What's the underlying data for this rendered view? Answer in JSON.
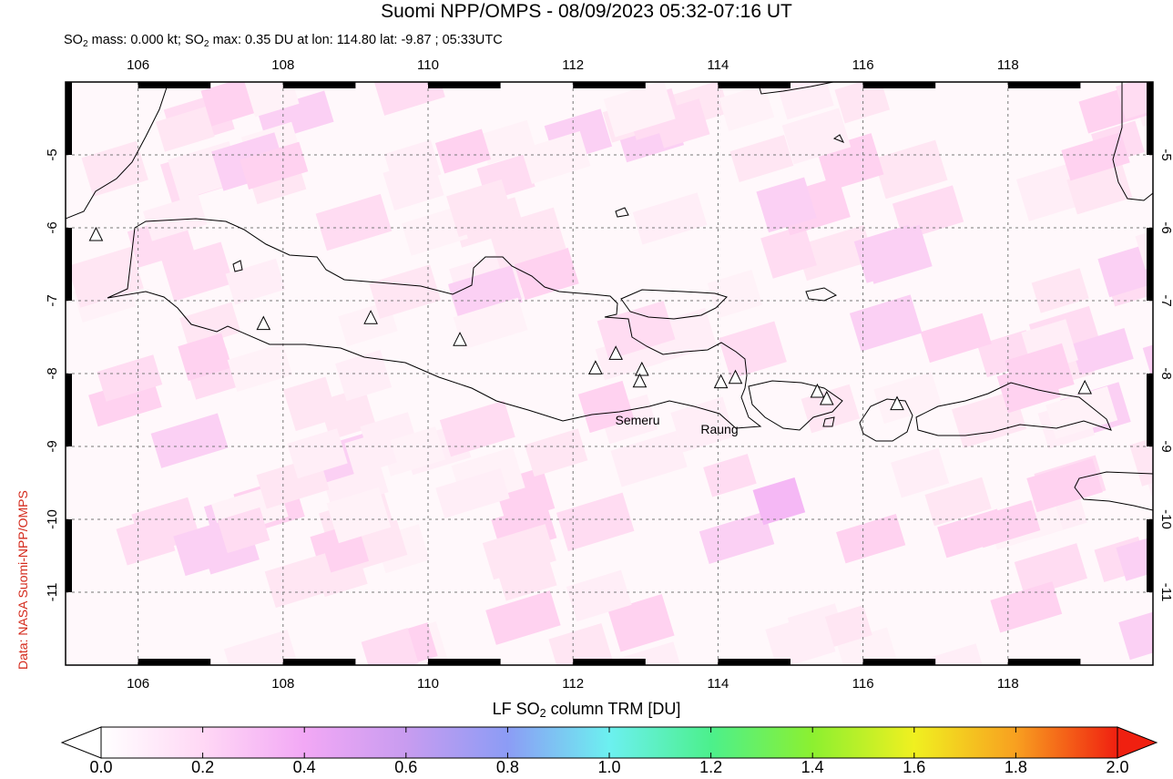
{
  "header": {
    "title": "Suomi NPP/OMPS - 08/09/2023 05:32-07:16 UT",
    "subtitle_parts": [
      "SO",
      "2",
      " mass: 0.000 kt; SO",
      "2",
      " max: 0.35 DU at lon: 114.80 lat: -9.87 ; 05:33UTC"
    ]
  },
  "credit": "Data: NASA Suomi-NPP/OMPS",
  "map": {
    "lon_range": [
      105,
      120
    ],
    "lat_range": [
      -12,
      -4
    ],
    "lon_ticks": [
      106,
      108,
      110,
      112,
      114,
      116,
      118
    ],
    "lat_ticks": [
      -5,
      -6,
      -7,
      -8,
      -9,
      -10,
      -11
    ],
    "grid": "dashed",
    "volcano_labels": [
      {
        "name": "Semeru",
        "lon": 112.92,
        "lat": -8.11
      },
      {
        "name": "Raung",
        "lon": 114.04,
        "lat": -8.12
      }
    ],
    "volcanoes": [
      {
        "lon": 105.42,
        "lat": -6.1
      },
      {
        "lon": 107.73,
        "lat": -7.32
      },
      {
        "lon": 109.21,
        "lat": -7.24
      },
      {
        "lon": 110.44,
        "lat": -7.54
      },
      {
        "lon": 112.31,
        "lat": -7.93
      },
      {
        "lon": 112.59,
        "lat": -7.73
      },
      {
        "lon": 112.95,
        "lat": -7.95
      },
      {
        "lon": 112.92,
        "lat": -8.11
      },
      {
        "lon": 114.04,
        "lat": -8.12
      },
      {
        "lon": 114.24,
        "lat": -8.06
      },
      {
        "lon": 115.37,
        "lat": -8.25
      },
      {
        "lon": 115.5,
        "lat": -8.35
      },
      {
        "lon": 116.47,
        "lat": -8.42
      },
      {
        "lon": 119.06,
        "lat": -8.2
      }
    ]
  },
  "colorbar": {
    "title_parts": [
      "LF SO",
      "2",
      " column TRM [DU]"
    ],
    "ticks": [
      "0.0",
      "0.2",
      "0.4",
      "0.6",
      "0.8",
      "1.0",
      "1.2",
      "1.4",
      "1.6",
      "1.8",
      "2.0"
    ],
    "colors": [
      "#ffffff",
      "#ffd8f5",
      "#f2a8f5",
      "#c89cf0",
      "#8c9cf5",
      "#6cf0f0",
      "#4cf08c",
      "#8cf030",
      "#f0f020",
      "#f8a020",
      "#f02010"
    ]
  }
}
